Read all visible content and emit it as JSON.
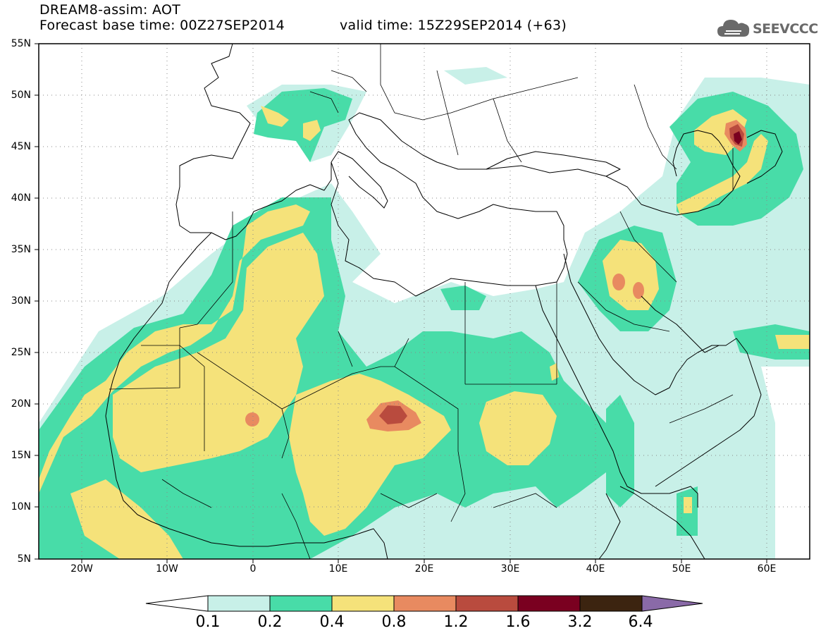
{
  "header": {
    "line1": "DREAM8-assim: AOT",
    "line2": "Forecast base time: 00Z27SEP2014",
    "valid": "valid time: 15Z29SEP2014 (+63)"
  },
  "logo": {
    "text": "SEEVCCC",
    "icon": "cloud-icon"
  },
  "map": {
    "lon_range": [
      -25,
      65
    ],
    "lat_range": [
      5,
      55
    ],
    "lat_ticks": [
      "55N",
      "50N",
      "45N",
      "40N",
      "35N",
      "30N",
      "25N",
      "20N",
      "15N",
      "10N",
      "5N"
    ],
    "lon_ticks": [
      "20W",
      "10W",
      "0",
      "10E",
      "20E",
      "30E",
      "40E",
      "50E",
      "60E"
    ],
    "grid": "dotted"
  },
  "legend": {
    "labels": [
      "0.1",
      "0.2",
      "0.4",
      "0.8",
      "1.2",
      "1.6",
      "3.2",
      "6.4"
    ],
    "colors": [
      "#ffffff",
      "#c8f0e8",
      "#48dca8",
      "#f5e27a",
      "#e88a60",
      "#b94b3e",
      "#7a0020",
      "#3c2410",
      "#8a6aa8"
    ]
  }
}
